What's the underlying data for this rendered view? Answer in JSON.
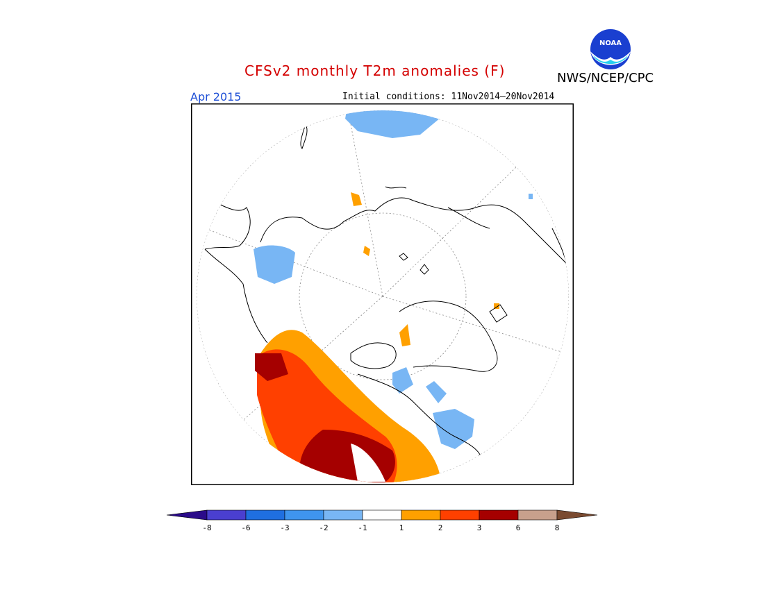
{
  "header": {
    "title": "CFSv2 monthly T2m anomalies (F)",
    "period": "Apr 2015",
    "initial_conditions": "Initial conditions: 11Nov2014—20Nov2014",
    "agency": "NWS/NCEP/CPC",
    "logo_text": "NOAA"
  },
  "colors": {
    "title": "#d40000",
    "period": "#1e4fd6",
    "levels": [
      "#2b0b8a",
      "#4a3fd0",
      "#1f6fe0",
      "#3f95ee",
      "#78b6f4",
      "#ffffff",
      "#ffa000",
      "#ff4000",
      "#a50000",
      "#c8a08c",
      "#7a4a30"
    ]
  },
  "legend": {
    "tick_labels": [
      "-8",
      "-6",
      "-3",
      "-2",
      "-1",
      "1",
      "2",
      "3",
      "6",
      "8"
    ]
  },
  "map": {
    "projection": "north polar stereographic",
    "features": [
      "warm anomaly over Eurasia (Russia/Siberia)",
      "cool anomaly over northern Canada and Hudson Bay region",
      "cool anomaly over North Pacific",
      "cool anomaly over Caspian region"
    ]
  }
}
